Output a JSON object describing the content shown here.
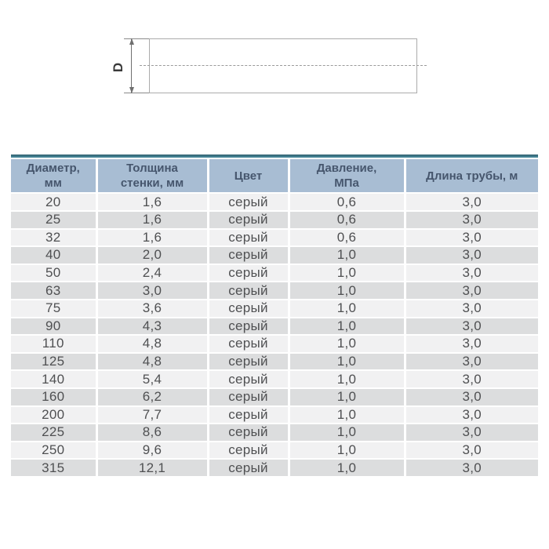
{
  "colors": {
    "accent_top": "#305f6d",
    "accent_bottom": "#4d8fa1",
    "header_bg": "#a8bdd3",
    "header_text": "#46566d",
    "row_light": "#f1f1f2",
    "row_dark": "#dcddde",
    "body_text": "#4f5052"
  },
  "diagram": {
    "dimension_label": "D"
  },
  "table": {
    "columns": [
      {
        "line1": "Диаметр,",
        "line2": "мм"
      },
      {
        "line1": "Толщина",
        "line2": "стенки, мм"
      },
      {
        "line1": "Цвет",
        "line2": ""
      },
      {
        "line1": "Давление,",
        "line2": "МПа"
      },
      {
        "line1": "Длина трубы, м",
        "line2": ""
      }
    ],
    "rows": [
      [
        "20",
        "1,6",
        "серый",
        "0,6",
        "3,0"
      ],
      [
        "25",
        "1,6",
        "серый",
        "0,6",
        "3,0"
      ],
      [
        "32",
        "1,6",
        "серый",
        "0,6",
        "3,0"
      ],
      [
        "40",
        "2,0",
        "серый",
        "1,0",
        "3,0"
      ],
      [
        "50",
        "2,4",
        "серый",
        "1,0",
        "3,0"
      ],
      [
        "63",
        "3,0",
        "серый",
        "1,0",
        "3,0"
      ],
      [
        "75",
        "3,6",
        "серый",
        "1,0",
        "3,0"
      ],
      [
        "90",
        "4,3",
        "серый",
        "1,0",
        "3,0"
      ],
      [
        "110",
        "4,8",
        "серый",
        "1,0",
        "3,0"
      ],
      [
        "125",
        "4,8",
        "серый",
        "1,0",
        "3,0"
      ],
      [
        "140",
        "5,4",
        "серый",
        "1,0",
        "3,0"
      ],
      [
        "160",
        "6,2",
        "серый",
        "1,0",
        "3,0"
      ],
      [
        "200",
        "7,7",
        "серый",
        "1,0",
        "3,0"
      ],
      [
        "225",
        "8,6",
        "серый",
        "1,0",
        "3,0"
      ],
      [
        "250",
        "9,6",
        "серый",
        "1,0",
        "3,0"
      ],
      [
        "315",
        "12,1",
        "серый",
        "1,0",
        "3,0"
      ]
    ]
  }
}
